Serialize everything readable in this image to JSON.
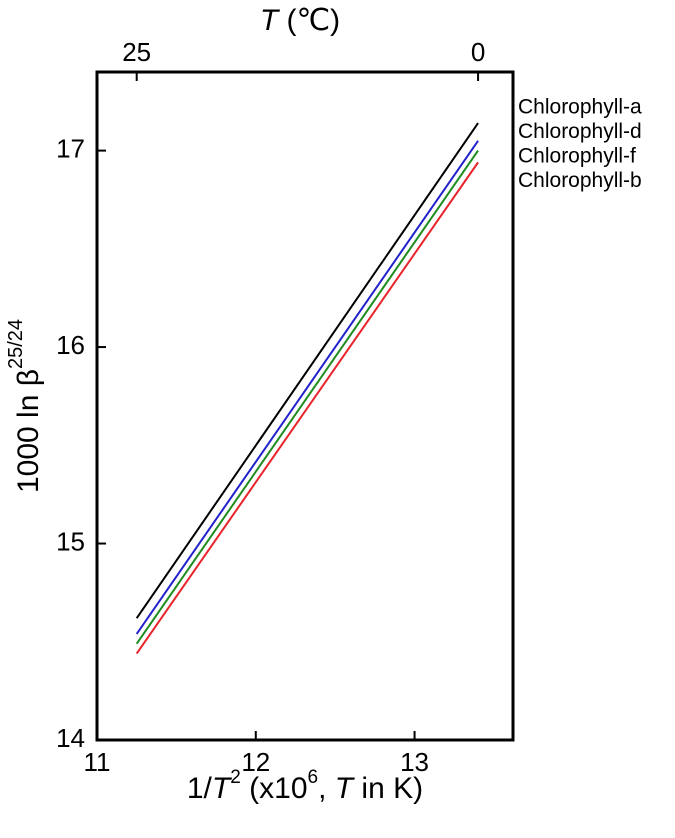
{
  "chart_data": {
    "type": "line",
    "xlabel": [
      "1/",
      "T",
      "2",
      " (x10",
      "6",
      ", ",
      "T",
      " in K)"
    ],
    "ylabel": [
      "1000 ln β",
      "25/24"
    ],
    "x2label": [
      "T",
      " (℃)"
    ],
    "x": [
      11.25,
      13.4
    ],
    "series": [
      {
        "name": "Chlorophyll-a",
        "color": "#000000",
        "values": [
          14.62,
          17.14
        ]
      },
      {
        "name": "Chlorophyll-d",
        "color": "#2222cc",
        "values": [
          14.54,
          17.05
        ]
      },
      {
        "name": "Chlorophyll-f",
        "color": "#1e8c1e",
        "values": [
          14.49,
          17.0
        ]
      },
      {
        "name": "Chlorophyll-b",
        "color": "#e8232a",
        "values": [
          14.44,
          16.94
        ]
      }
    ],
    "xlim": [
      11,
      13.62
    ],
    "xticks": [
      11,
      12,
      13
    ],
    "ylim": [
      14,
      17.4
    ],
    "yticks": [
      14,
      15,
      16,
      17
    ],
    "x2ticks": [
      {
        "value": 11.25,
        "label": "25"
      },
      {
        "value": 13.4,
        "label": "0"
      }
    ],
    "legend": "right",
    "grid": false
  }
}
